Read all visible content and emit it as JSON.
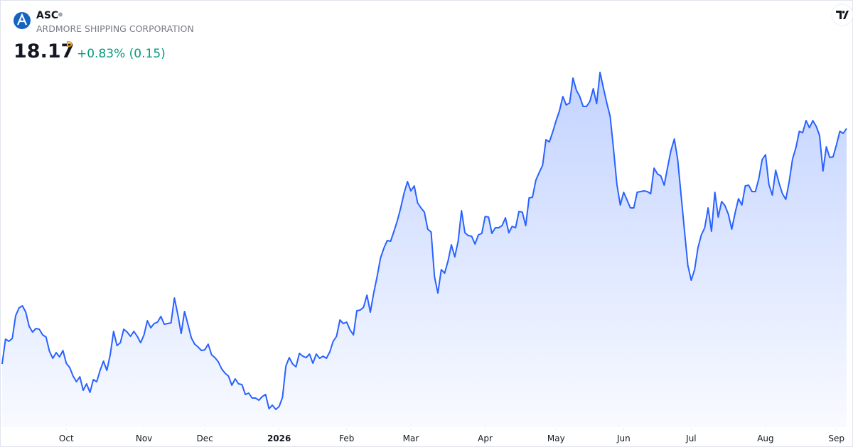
{
  "header": {
    "symbol": "ASC",
    "name": "ARDMORE SHIPPING CORPORATION",
    "price": 18.17,
    "interval": "D",
    "change": "+0.83% (0.15)"
  },
  "chart_data": {
    "type": "line",
    "color": "#2962ff",
    "values": [
      11.53,
      12.23,
      12.17,
      12.25,
      12.89,
      13.11,
      13.17,
      12.99,
      12.59,
      12.43,
      12.53,
      12.51,
      12.35,
      12.29,
      11.89,
      11.69,
      11.85,
      11.73,
      11.91,
      11.55,
      11.43,
      11.19,
      11.03,
      11.17,
      10.79,
      10.97,
      10.73,
      11.09,
      11.03,
      11.35,
      11.61,
      11.35,
      11.79,
      12.45,
      12.05,
      12.13,
      12.51,
      12.43,
      12.31,
      12.45,
      12.31,
      12.13,
      12.35,
      12.75,
      12.55,
      12.67,
      12.71,
      12.87,
      12.65,
      12.67,
      12.69,
      13.39,
      12.93,
      12.39,
      13.01,
      12.65,
      12.27,
      12.09,
      12.01,
      11.91,
      11.93,
      12.09,
      11.79,
      11.71,
      11.59,
      11.39,
      11.27,
      11.19,
      10.93,
      11.11,
      10.97,
      10.95,
      10.67,
      10.71,
      10.57,
      10.57,
      10.51,
      10.61,
      10.67,
      10.27,
      10.37,
      10.25,
      10.33,
      10.59,
      11.47,
      11.71,
      11.53,
      11.45,
      11.83,
      11.75,
      11.71,
      11.81,
      11.55,
      11.81,
      11.69,
      11.75,
      11.69,
      11.87,
      12.17,
      12.31,
      12.77,
      12.67,
      12.71,
      12.49,
      12.35,
      13.03,
      13.05,
      13.13,
      13.47,
      12.99,
      13.53,
      13.99,
      14.51,
      14.79,
      15.01,
      14.99,
      15.27,
      15.57,
      15.93,
      16.35,
      16.67,
      16.41,
      16.55,
      16.07,
      15.93,
      15.81,
      15.33,
      15.25,
      13.99,
      13.53,
      14.19,
      14.09,
      14.43,
      14.89,
      14.55,
      14.99,
      15.85,
      15.23,
      15.15,
      15.13,
      14.91,
      15.17,
      15.21,
      15.69,
      15.67,
      15.21,
      15.37,
      15.37,
      15.43,
      15.65,
      15.23,
      15.41,
      15.37,
      15.83,
      15.81,
      15.43,
      16.21,
      16.23,
      16.71,
      16.93,
      17.13,
      17.85,
      17.79,
      18.07,
      18.39,
      18.67,
      19.07,
      18.83,
      18.89,
      19.59,
      19.25,
      19.07,
      18.79,
      18.79,
      18.93,
      19.29,
      18.87,
      19.75,
      19.31,
      18.89,
      18.51,
      17.59,
      16.59,
      16.01,
      16.37,
      16.15,
      15.93,
      15.93,
      16.37,
      16.39,
      16.41,
      16.39,
      16.33,
      17.05,
      16.89,
      16.83,
      16.57,
      17.07,
      17.55,
      17.87,
      17.29,
      16.29,
      15.29,
      14.31,
      13.89,
      14.19,
      14.81,
      15.17,
      15.37,
      15.93,
      15.27,
      16.37,
      15.67,
      16.11,
      15.99,
      15.75,
      15.33,
      15.79,
      16.19,
      16.01,
      16.55,
      16.57,
      16.39,
      16.39,
      16.75,
      17.29,
      17.43,
      16.59,
      16.29,
      16.99,
      16.63,
      16.33,
      16.17,
      16.67,
      17.31,
      17.63,
      18.09,
      18.05,
      18.39,
      18.19,
      18.39,
      18.23,
      17.97,
      16.97,
      17.65,
      17.35,
      17.37,
      17.71,
      18.09,
      18.03,
      18.17
    ],
    "xticks": [
      {
        "value": 19,
        "label": "Oct"
      },
      {
        "value": 42,
        "label": "Nov"
      },
      {
        "value": 60,
        "label": "Dec"
      },
      {
        "value": 82,
        "label": "2026"
      },
      {
        "value": 102,
        "label": "Feb"
      },
      {
        "value": 121,
        "label": "Mar"
      },
      {
        "value": 143,
        "label": "Apr"
      },
      {
        "value": 164,
        "label": "May"
      },
      {
        "value": 184,
        "label": "Jun"
      },
      {
        "value": 204,
        "label": "Jul"
      },
      {
        "value": 226,
        "label": "Aug"
      },
      {
        "value": 247,
        "label": "Sep"
      }
    ]
  }
}
